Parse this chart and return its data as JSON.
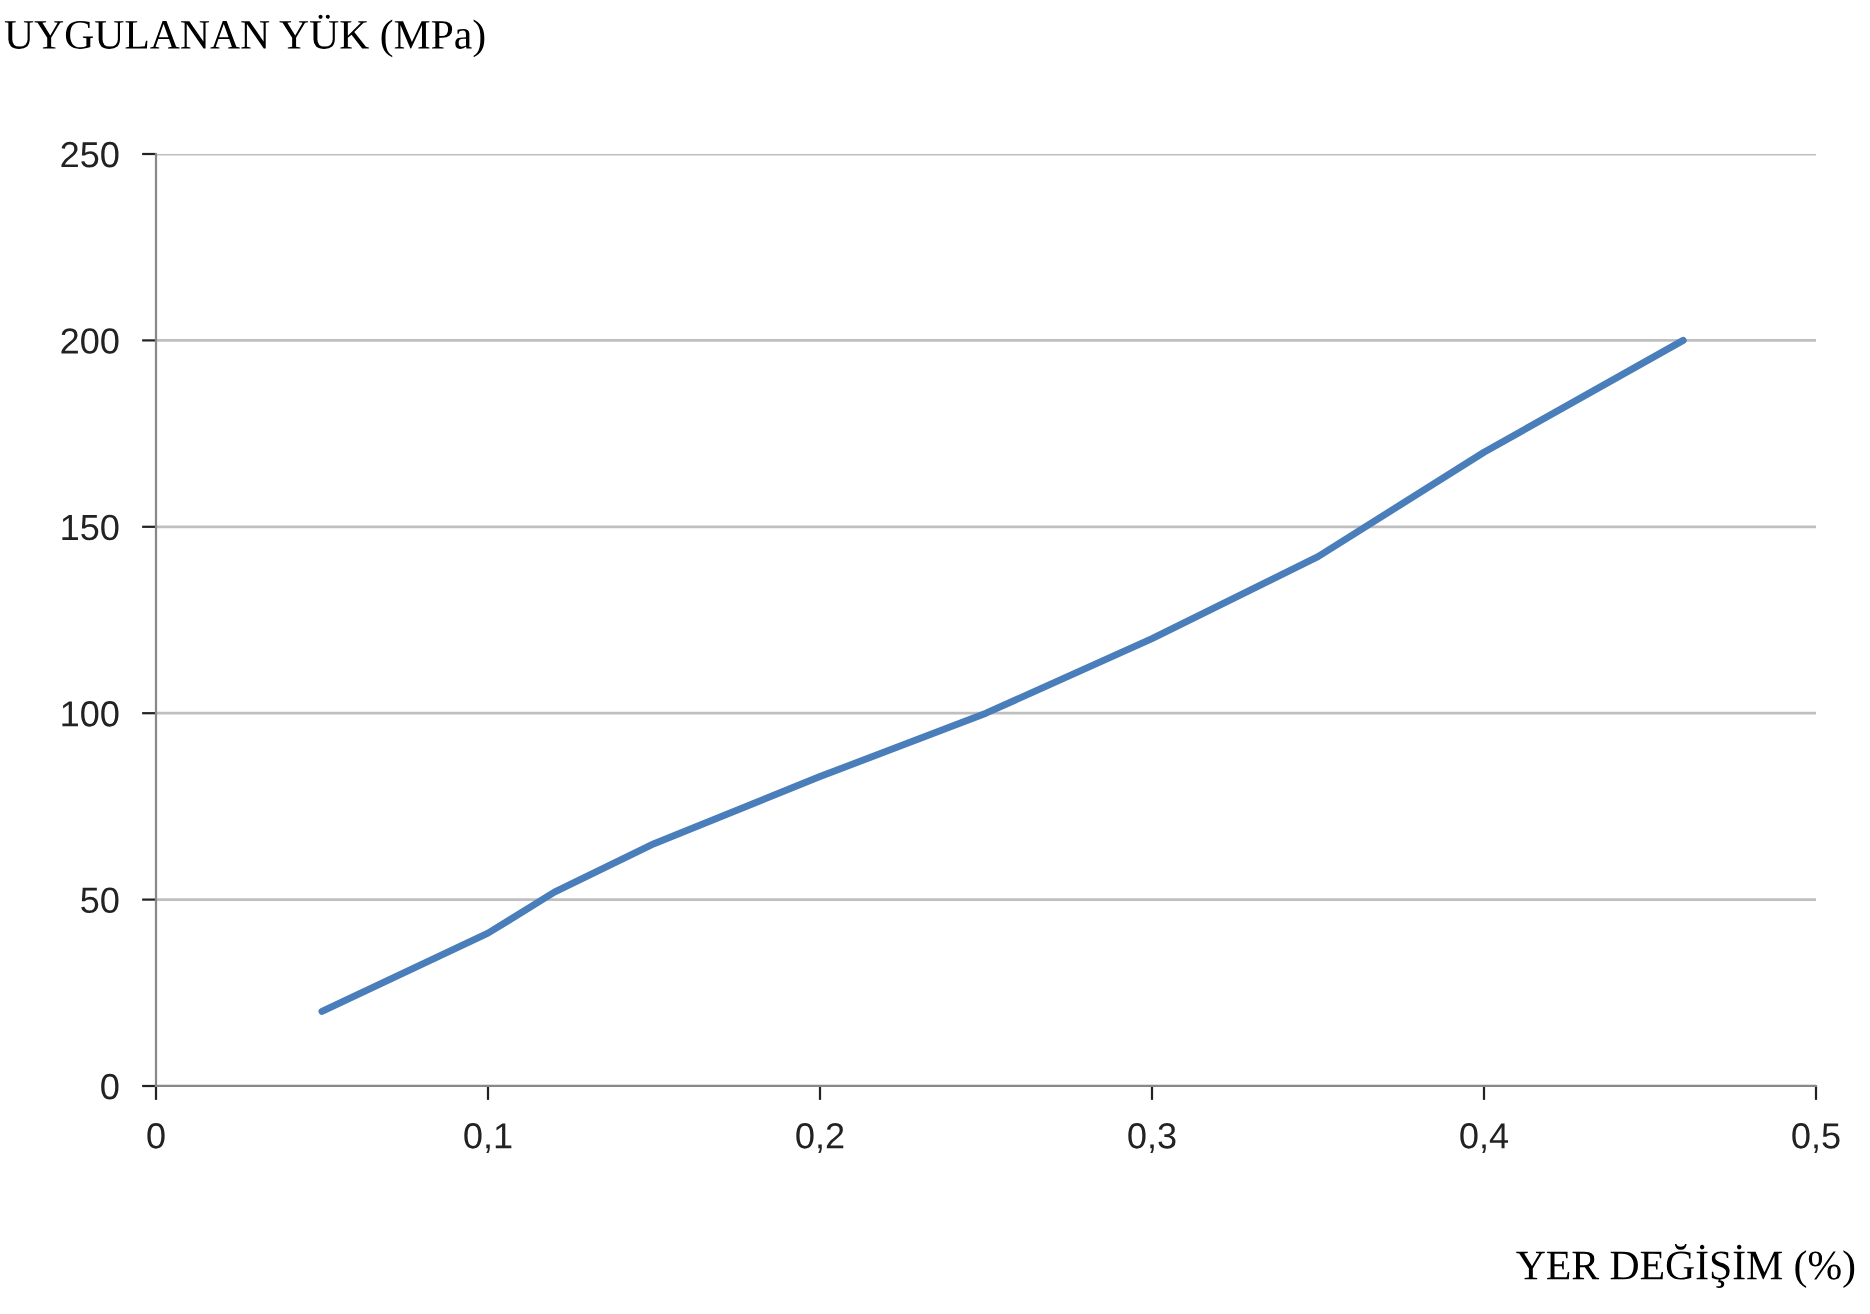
{
  "chart_data": {
    "type": "line",
    "ylabel": "UYGULANAN YÜK (MPa)",
    "xlabel": "YER DEĞİŞİM (%)",
    "series": [
      {
        "color": "#4a7ebb",
        "x": [
          0.05,
          0.1,
          0.12,
          0.15,
          0.2,
          0.25,
          0.3,
          0.35,
          0.4,
          0.46
        ],
        "values": [
          20,
          41,
          52,
          65,
          83,
          100,
          120,
          142,
          170,
          200
        ]
      }
    ],
    "xlim": [
      0,
      0.5
    ],
    "xticks": [
      0,
      {
        "value": 0.1,
        "label": "0,1"
      },
      {
        "value": 0.2,
        "label": "0,2"
      },
      {
        "value": 0.3,
        "label": "0,3"
      },
      {
        "value": 0.4,
        "label": "0,4"
      },
      {
        "value": 0.5,
        "label": "0,5"
      }
    ],
    "ylim": [
      0,
      250
    ],
    "yticks": [
      0,
      50,
      100,
      150,
      200,
      250
    ],
    "grid": "y",
    "legend": false,
    "marker": "none",
    "line_style": "solid"
  }
}
